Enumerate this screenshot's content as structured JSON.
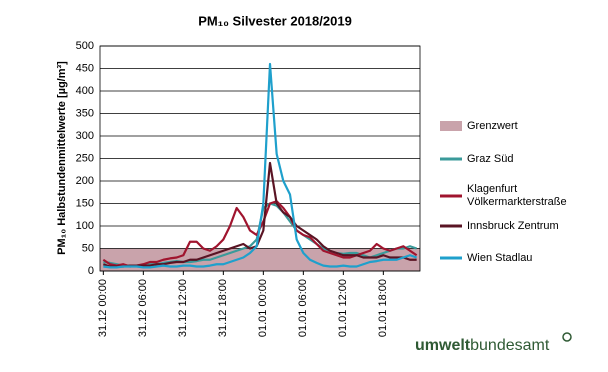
{
  "chart_data": {
    "type": "line",
    "title": "PM₁₀ Silvester 2018/2019",
    "y_label": "PM₁₀ Halbstundenmittelwerte [µg/m³]",
    "categories": [
      "31.12 00:00",
      null,
      null,
      null,
      null,
      null,
      "31.12 06:00",
      null,
      null,
      null,
      null,
      null,
      "31.12 12:00",
      null,
      null,
      null,
      null,
      null,
      "31.12 18:00",
      null,
      null,
      null,
      null,
      null,
      "01.01 00:00",
      null,
      null,
      null,
      null,
      null,
      "01.01 06:00",
      null,
      null,
      null,
      null,
      null,
      "01.01 12:00",
      null,
      null,
      null,
      null,
      null,
      "01.01 18:00",
      null,
      null,
      null,
      null,
      null
    ],
    "ylim": [
      0,
      500
    ],
    "yticks": [
      0,
      50,
      100,
      150,
      200,
      250,
      300,
      350,
      400,
      450,
      500
    ],
    "grid": true,
    "threshold": {
      "name": "Grenzwert",
      "value": 50,
      "color": "#c9a3ab"
    },
    "series": [
      {
        "name": "Graz Süd",
        "color": "#3a9a9a",
        "values": [
          20,
          18,
          15,
          12,
          12,
          12,
          14,
          15,
          15,
          18,
          20,
          22,
          20,
          20,
          22,
          25,
          25,
          30,
          35,
          40,
          45,
          50,
          55,
          70,
          140,
          150,
          145,
          130,
          110,
          90,
          80,
          70,
          60,
          50,
          45,
          40,
          38,
          40,
          40,
          35,
          30,
          35,
          40,
          45,
          50,
          50,
          55,
          50
        ]
      },
      {
        "name": "Klagenfurt Völkermarkterstraße",
        "color": "#a0142e",
        "values": [
          25,
          15,
          12,
          15,
          10,
          12,
          15,
          20,
          20,
          25,
          28,
          30,
          35,
          65,
          65,
          50,
          45,
          55,
          70,
          100,
          140,
          120,
          90,
          80,
          110,
          150,
          155,
          140,
          120,
          90,
          80,
          75,
          60,
          45,
          40,
          35,
          30,
          30,
          35,
          40,
          45,
          60,
          50,
          45,
          50,
          55,
          45,
          35
        ]
      },
      {
        "name": "Innsbruck Zentrum",
        "color": "#5a1424",
        "values": [
          15,
          10,
          10,
          10,
          12,
          12,
          12,
          12,
          15,
          15,
          18,
          20,
          20,
          25,
          25,
          30,
          35,
          40,
          45,
          50,
          55,
          60,
          50,
          55,
          90,
          240,
          150,
          130,
          120,
          100,
          90,
          80,
          70,
          55,
          45,
          40,
          35,
          35,
          35,
          30,
          30,
          30,
          35,
          30,
          30,
          30,
          25,
          25
        ]
      },
      {
        "name": "Wien Stadlau",
        "color": "#1fa0cc",
        "values": [
          10,
          8,
          8,
          10,
          10,
          10,
          8,
          8,
          10,
          12,
          10,
          10,
          12,
          12,
          10,
          10,
          12,
          15,
          15,
          20,
          25,
          30,
          40,
          55,
          150,
          460,
          260,
          200,
          170,
          70,
          40,
          25,
          18,
          12,
          10,
          10,
          12,
          10,
          10,
          15,
          20,
          22,
          25,
          25,
          25,
          30,
          35,
          30
        ]
      }
    ],
    "logo": [
      "umwelt",
      "bundesamt"
    ]
  }
}
